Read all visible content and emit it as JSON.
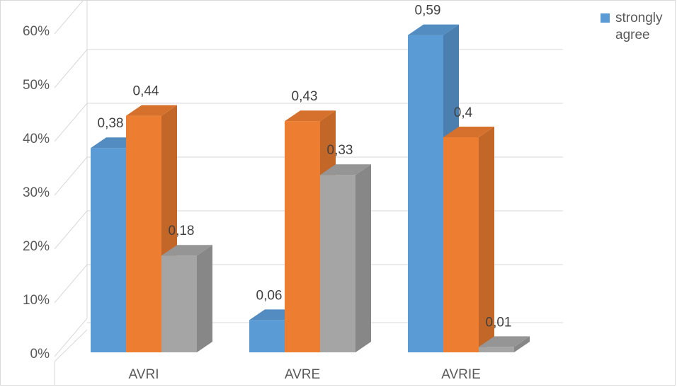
{
  "chart_data": {
    "type": "bar",
    "categories": [
      "AVRI",
      "AVRE",
      "AVRIE"
    ],
    "series": [
      {
        "name": "strongly agree",
        "values": [
          0.38,
          0.06,
          0.59
        ],
        "labels": [
          "0,38",
          "0,06",
          "0,59"
        ],
        "color": "#5b9bd5"
      },
      {
        "values": [
          0.44,
          0.43,
          0.4
        ],
        "labels": [
          "0,44",
          "0,43",
          "0,4"
        ],
        "color": "#ed7d31"
      },
      {
        "values": [
          0.18,
          0.33,
          0.01
        ],
        "labels": [
          "0,18",
          "0,33",
          "0,01"
        ],
        "color": "#a5a5a5"
      }
    ],
    "yticks": [
      "0%",
      "10%",
      "20%",
      "30%",
      "40%",
      "50%",
      "60%"
    ],
    "ylim": [
      0,
      0.6
    ],
    "grid": true,
    "legend_position": "top-right",
    "style": "3d-clustered-column"
  },
  "legend": {
    "label": "strongly agree"
  }
}
